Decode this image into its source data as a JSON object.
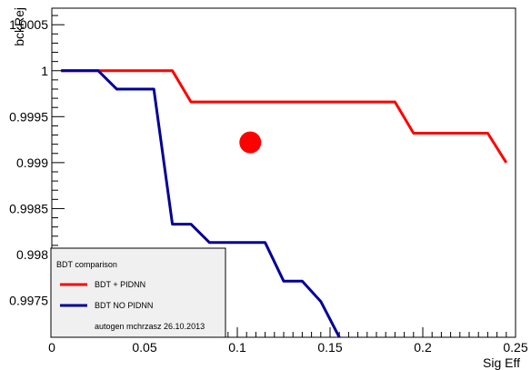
{
  "chart_data": {
    "type": "line",
    "xlabel": "Sig Eff",
    "ylabel": "bckRej",
    "xlim": [
      0,
      0.25
    ],
    "ylim": [
      0.9971,
      1.00068
    ],
    "grid": false,
    "x_ticks": [
      {
        "value": 0,
        "label": "0"
      },
      {
        "value": 0.05,
        "label": "0.05"
      },
      {
        "value": 0.1,
        "label": "0.1"
      },
      {
        "value": 0.15,
        "label": "0.15"
      },
      {
        "value": 0.2,
        "label": "0.2"
      },
      {
        "value": 0.25,
        "label": "0.25"
      }
    ],
    "y_ticks": [
      {
        "value": 0.9975,
        "label": "0.9975"
      },
      {
        "value": 0.998,
        "label": "0.998"
      },
      {
        "value": 0.9985,
        "label": "0.9985"
      },
      {
        "value": 0.999,
        "label": "0.999"
      },
      {
        "value": 0.9995,
        "label": "0.9995"
      },
      {
        "value": 1.0,
        "label": "1"
      },
      {
        "value": 1.0005,
        "label": "1.0005"
      }
    ],
    "series": [
      {
        "name": "BDT + PIDNN",
        "color": "#ff0000",
        "points": [
          [
            0.005,
            1.0
          ],
          [
            0.025,
            1.0
          ],
          [
            0.065,
            1.0
          ],
          [
            0.075,
            0.99966
          ],
          [
            0.185,
            0.99966
          ],
          [
            0.195,
            0.99932
          ],
          [
            0.235,
            0.99932
          ],
          [
            0.245,
            0.999
          ]
        ]
      },
      {
        "name": "BDT NO PIDNN",
        "color": "#000099",
        "points": [
          [
            0.005,
            1.0
          ],
          [
            0.025,
            1.0
          ],
          [
            0.035,
            0.9998
          ],
          [
            0.055,
            0.9998
          ],
          [
            0.065,
            0.99833
          ],
          [
            0.075,
            0.99833
          ],
          [
            0.085,
            0.99813
          ],
          [
            0.115,
            0.99813
          ],
          [
            0.125,
            0.99771
          ],
          [
            0.135,
            0.99771
          ],
          [
            0.145,
            0.99749
          ],
          [
            0.155,
            0.9971
          ]
        ]
      }
    ],
    "marker": {
      "x": 0.107,
      "y": 0.99922,
      "color": "#ff0000"
    },
    "legend": {
      "title": "BDT comparison",
      "entries": [
        "BDT + PIDNN",
        "BDT NO PIDNN"
      ],
      "note": "autogen mchrzasz 26.10.2013",
      "placement": "bottom-left"
    }
  }
}
